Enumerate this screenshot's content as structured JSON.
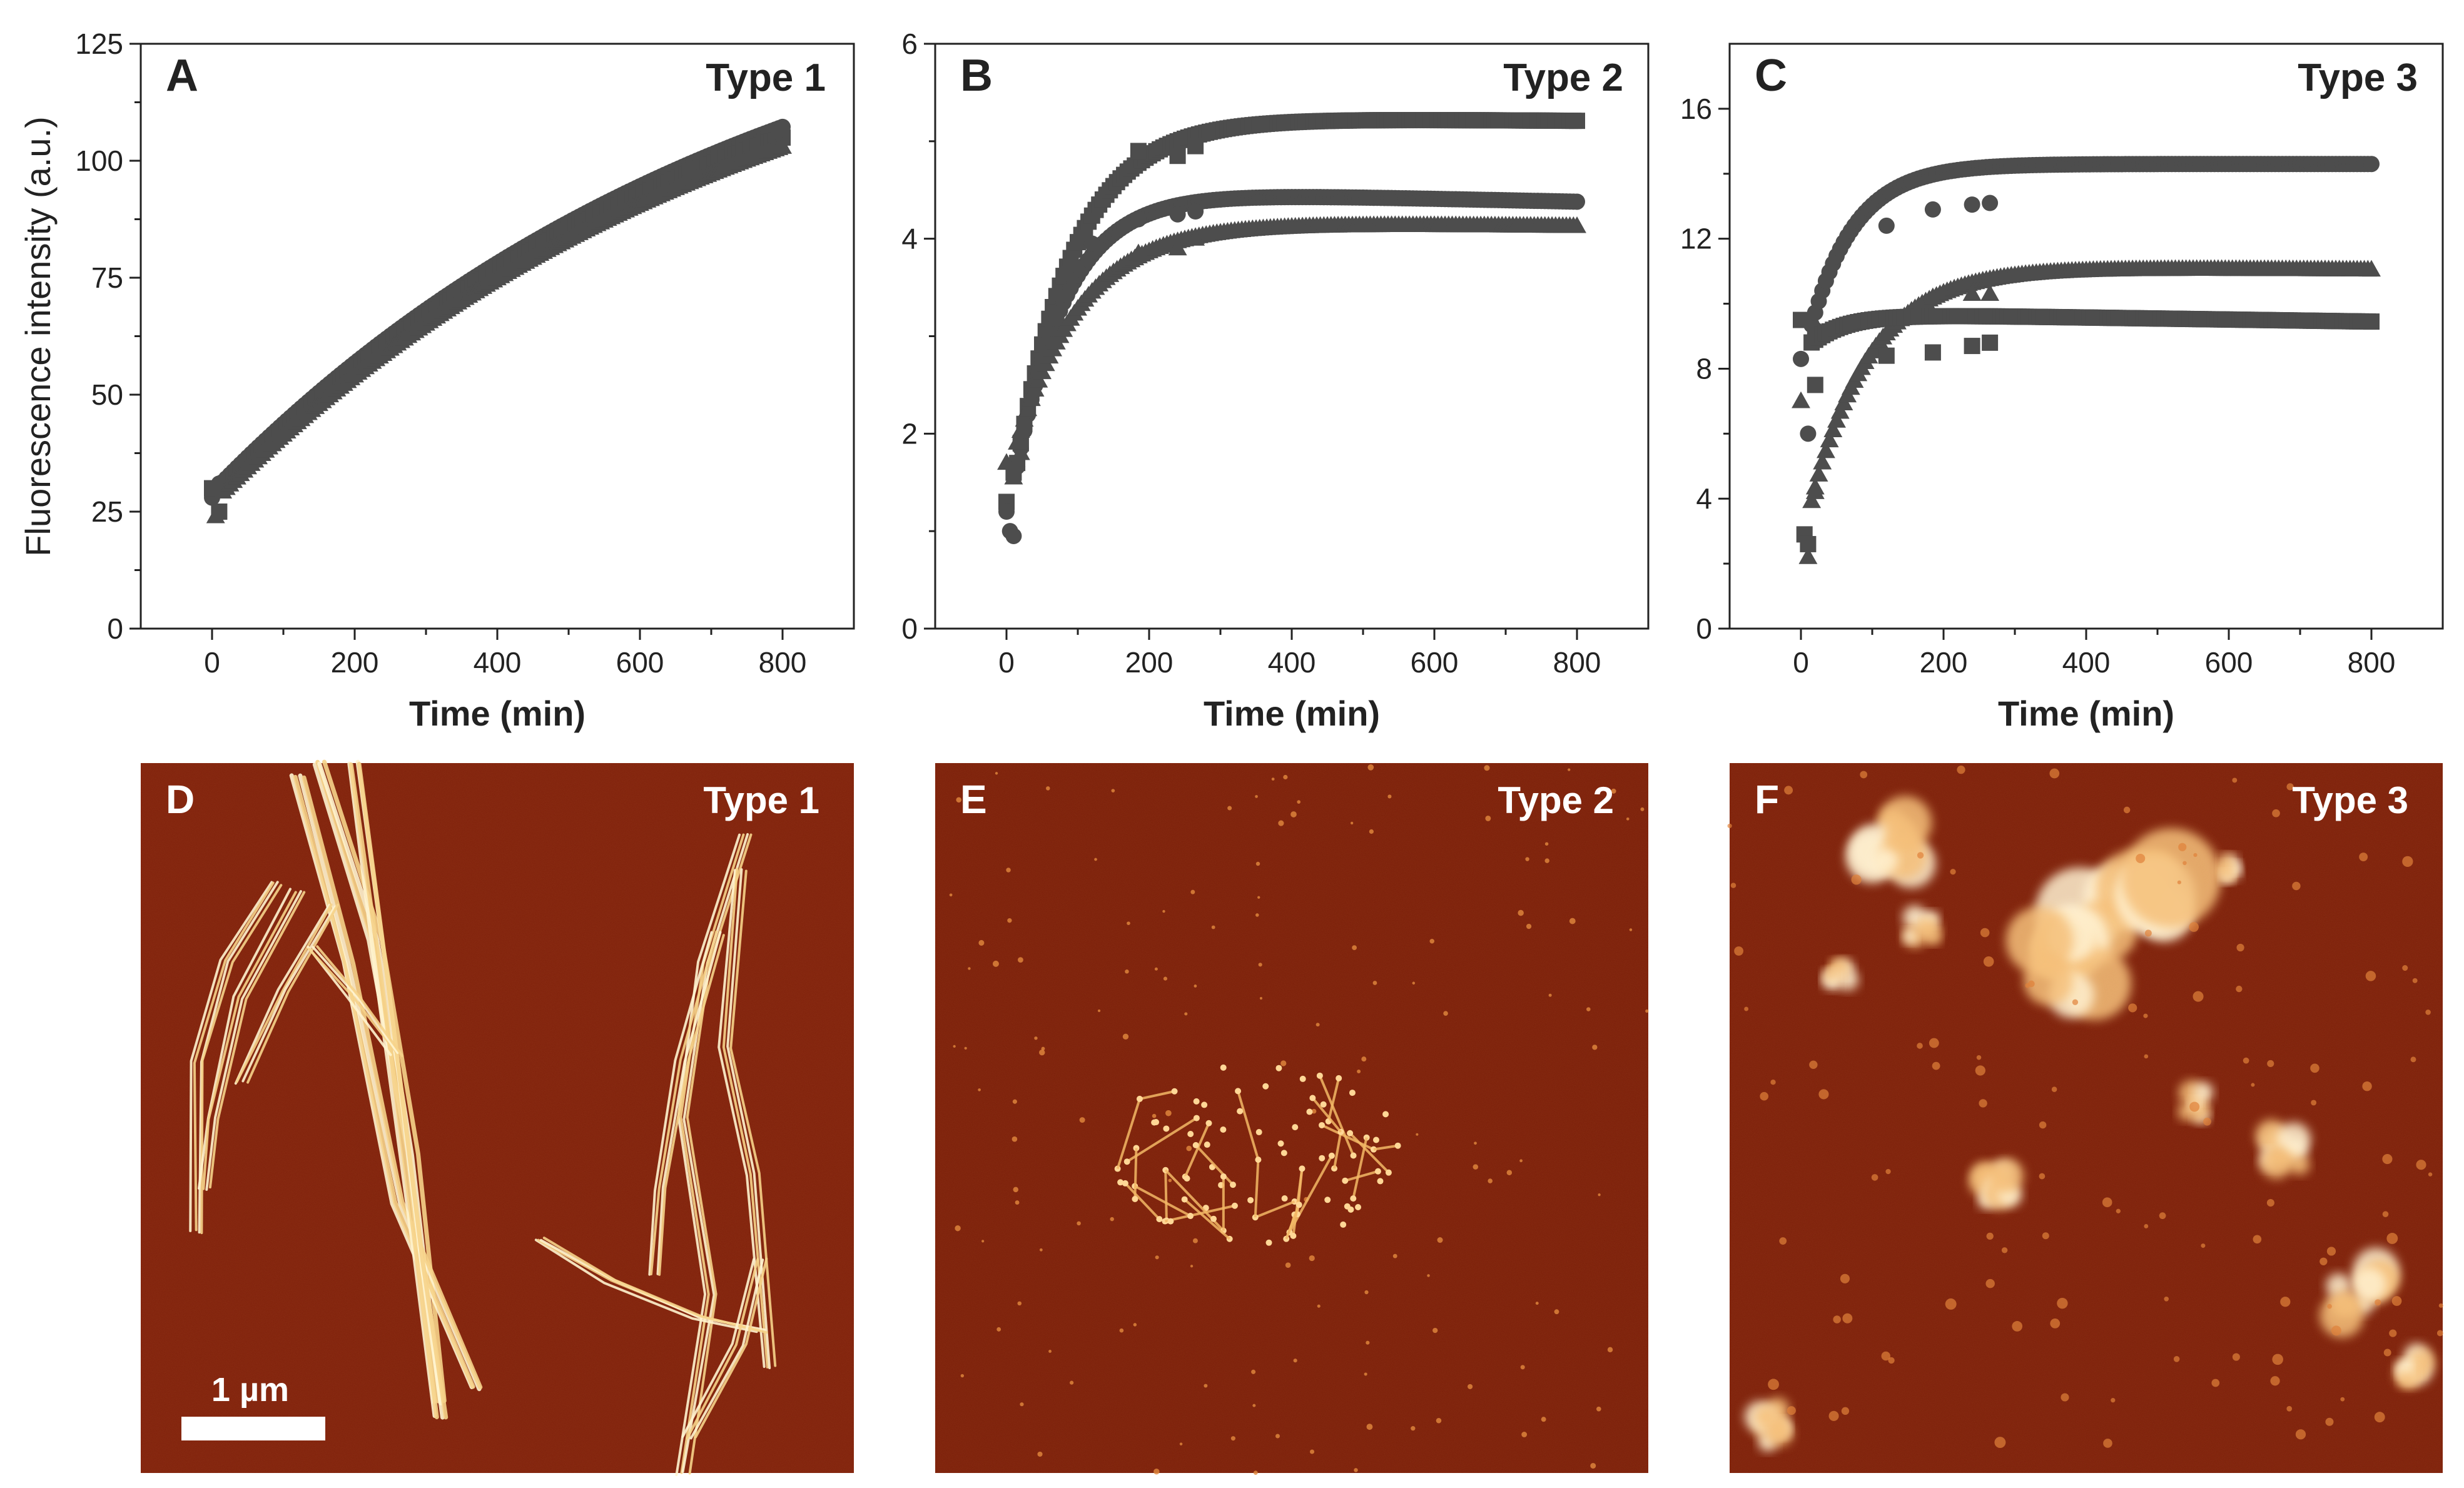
{
  "chart_data": [
    {
      "panel": "A",
      "label": "Type 1",
      "type": "scatter",
      "xlabel": "Time (min)",
      "ylabel": "Fluorescence intensity (a.u.)",
      "xlim": [
        -100,
        900
      ],
      "ylim": [
        0,
        125
      ],
      "xticks": [
        "0",
        "200",
        "400",
        "600",
        "800"
      ],
      "xtick_values": [
        0,
        200,
        400,
        600,
        800
      ],
      "yticks": [
        "0",
        "25",
        "50",
        "75",
        "100",
        "125"
      ],
      "ytick_values": [
        0,
        25,
        50,
        75,
        100,
        125
      ],
      "grid": false,
      "curve_model": "saturating",
      "series": [
        {
          "marker": "circle",
          "color": "#4d4d4d",
          "t_start": 0,
          "t_end": 800,
          "y0": 29,
          "yinf": 150,
          "k": 0.0013,
          "dev": [
            [
              0,
              28
            ],
            [
              10,
              31
            ]
          ],
          "late": []
        },
        {
          "marker": "square",
          "color": "#4d4d4d",
          "t_start": 0,
          "t_end": 800,
          "y0": 28,
          "yinf": 146,
          "k": 0.00132,
          "dev": [
            [
              0,
              30
            ],
            [
              10,
              25
            ]
          ],
          "late": []
        },
        {
          "marker": "triangle",
          "color": "#4d4d4d",
          "t_start": 0,
          "t_end": 800,
          "y0": 27,
          "yinf": 143,
          "k": 0.00133,
          "dev": [
            [
              5,
              24
            ]
          ],
          "late": []
        }
      ]
    },
    {
      "panel": "B",
      "label": "Type 2",
      "type": "scatter",
      "xlabel": "Time (min)",
      "xlim": [
        -100,
        900
      ],
      "ylim": [
        0,
        6
      ],
      "xticks": [
        "0",
        "200",
        "400",
        "600",
        "800"
      ],
      "xtick_values": [
        0,
        200,
        400,
        600,
        800
      ],
      "yticks": [
        "0",
        "2",
        "4",
        "6"
      ],
      "ytick_values": [
        0,
        2,
        4,
        6
      ],
      "grid": false,
      "curve_model": "rise",
      "series": [
        {
          "marker": "square",
          "color": "#4d4d4d",
          "t_start": 0,
          "t_end": 800,
          "y0": 1.0,
          "plateau": 5.25,
          "k": 0.012,
          "drift": -0.04,
          "dev": [
            [
              0,
              1.3
            ],
            [
              10,
              1.6
            ],
            [
              20,
              1.9
            ]
          ],
          "late": [
            [
              185,
              4.9
            ],
            [
              240,
              4.85
            ],
            [
              265,
              4.95
            ]
          ]
        },
        {
          "marker": "circle",
          "color": "#4d4d4d",
          "t_start": 0,
          "t_end": 800,
          "y0": 1.0,
          "plateau": 4.5,
          "k": 0.014,
          "drift": -0.12,
          "dev": [
            [
              0,
              1.2
            ],
            [
              5,
              1.0
            ],
            [
              10,
              0.95
            ]
          ],
          "late": [
            [
              120,
              3.95
            ],
            [
              185,
              4.2
            ],
            [
              240,
              4.25
            ],
            [
              265,
              4.28
            ]
          ]
        },
        {
          "marker": "triangle",
          "color": "#4d4d4d",
          "t_start": 0,
          "t_end": 800,
          "y0": 1.5,
          "plateau": 4.18,
          "k": 0.011,
          "drift": -0.05,
          "dev": [
            [
              0,
              1.7
            ],
            [
              10,
              1.55
            ],
            [
              20,
              1.8
            ]
          ],
          "late": [
            [
              185,
              3.85
            ],
            [
              240,
              3.9
            ],
            [
              265,
              4.0
            ]
          ]
        }
      ]
    },
    {
      "panel": "C",
      "label": "Type 3",
      "type": "scatter",
      "xlabel": "Time (min)",
      "xlim": [
        -100,
        900
      ],
      "ylim": [
        0,
        18
      ],
      "xticks": [
        "0",
        "200",
        "400",
        "600",
        "800"
      ],
      "xtick_values": [
        0,
        200,
        400,
        600,
        800
      ],
      "yticks": [
        "0",
        "4",
        "8",
        "12",
        "16"
      ],
      "ytick_values": [
        0,
        4,
        8,
        12,
        16
      ],
      "grid": false,
      "curve_model": "rise",
      "series": [
        {
          "marker": "circle",
          "color": "#4d4d4d",
          "t_start": 0,
          "t_end": 800,
          "y0": 8.0,
          "plateau": 14.3,
          "k": 0.016,
          "drift": 0.0,
          "dev": [
            [
              0,
              8.3
            ],
            [
              10,
              6.0
            ],
            [
              20,
              9.2
            ]
          ],
          "late": [
            [
              120,
              12.4
            ],
            [
              185,
              12.9
            ],
            [
              240,
              13.05
            ],
            [
              265,
              13.1
            ]
          ]
        },
        {
          "marker": "triangle",
          "color": "#4d4d4d",
          "t_start": 0,
          "t_end": 800,
          "y0": 2.5,
          "plateau": 11.15,
          "k": 0.012,
          "drift": -0.1,
          "dev": [
            [
              0,
              7.0
            ],
            [
              10,
              2.2
            ],
            [
              20,
              4.2
            ]
          ],
          "late": [
            [
              185,
              10.2
            ],
            [
              240,
              10.3
            ],
            [
              265,
              10.3
            ]
          ]
        },
        {
          "marker": "square",
          "color": "#4d4d4d",
          "t_start": 0,
          "t_end": 800,
          "y0": 8.5,
          "plateau": 9.7,
          "k": 0.02,
          "drift": -0.25,
          "dev": [
            [
              0,
              9.5
            ],
            [
              5,
              2.9
            ],
            [
              10,
              2.6
            ],
            [
              20,
              7.5
            ]
          ],
          "late": [
            [
              120,
              8.4
            ],
            [
              185,
              8.5
            ],
            [
              240,
              8.7
            ],
            [
              265,
              8.8
            ]
          ]
        }
      ]
    }
  ],
  "images": [
    {
      "panel": "D",
      "label": "Type 1",
      "scalebar": "1 µm",
      "style": "fibrils"
    },
    {
      "panel": "E",
      "label": "Type 2",
      "style": "network"
    },
    {
      "panel": "F",
      "label": "Type 3",
      "style": "aggregates"
    }
  ],
  "colors": {
    "marker": "#4d4d4d",
    "afm_background": "#7f1f0a",
    "afm_highlight": "#fff3c8"
  }
}
